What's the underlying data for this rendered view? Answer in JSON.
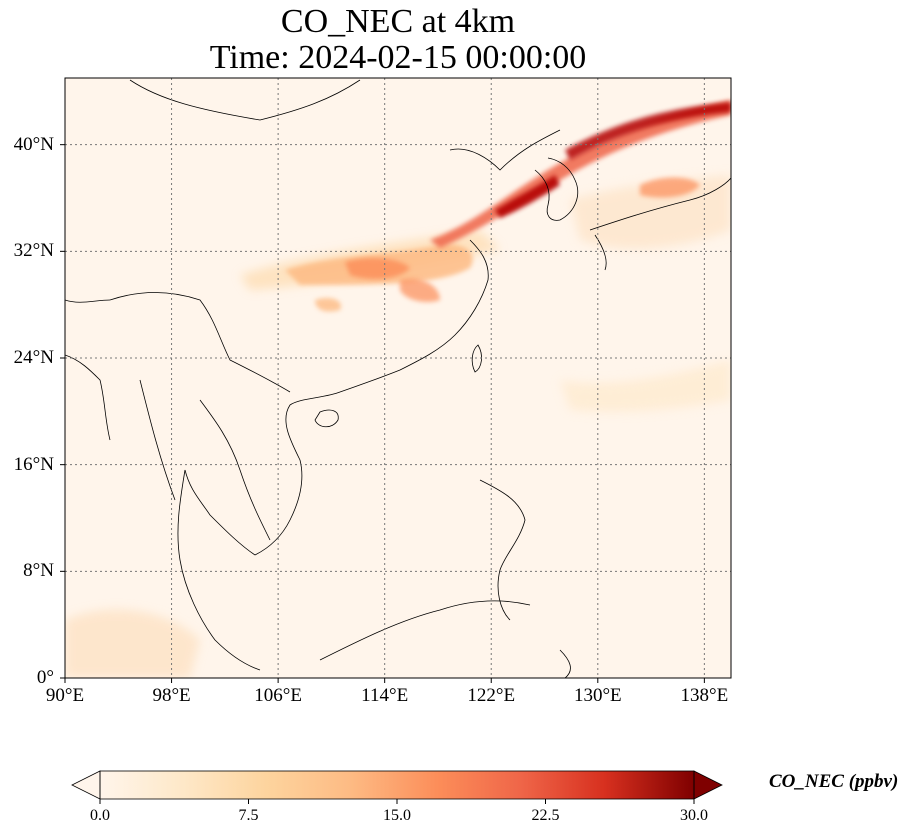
{
  "title": {
    "line1": "CO_NEC at 4km",
    "line2": "Time: 2024-02-15 00:00:00"
  },
  "map": {
    "lon_range": [
      90,
      140
    ],
    "lat_range": [
      0,
      45
    ],
    "lat_ticks": [
      {
        "value": 40,
        "label": "40°N"
      },
      {
        "value": 32,
        "label": "32°N"
      },
      {
        "value": 24,
        "label": "24°N"
      },
      {
        "value": 16,
        "label": "16°N"
      },
      {
        "value": 8,
        "label": "8°N"
      },
      {
        "value": 0,
        "label": "0°"
      }
    ],
    "lon_ticks": [
      {
        "value": 90,
        "label": "90°E"
      },
      {
        "value": 98,
        "label": "98°E"
      },
      {
        "value": 106,
        "label": "106°E"
      },
      {
        "value": 114,
        "label": "114°E"
      },
      {
        "value": 122,
        "label": "122°E"
      },
      {
        "value": 130,
        "label": "130°E"
      },
      {
        "value": 138,
        "label": "138°E"
      }
    ],
    "gridlines": true,
    "field_color_low": "#fff5eb",
    "field_color_high": "#7f0000"
  },
  "colorbar": {
    "label": "CO_NEC (ppbv)",
    "min": 0.0,
    "max": 30.0,
    "extend": "both",
    "ticks": [
      "0.0",
      "7.5",
      "15.0",
      "22.5",
      "30.0"
    ],
    "colors": [
      "#fff5eb",
      "#fdd49e",
      "#fdbb84",
      "#fc8d59",
      "#ef6548",
      "#d7301f",
      "#b30000",
      "#7f0000"
    ]
  }
}
